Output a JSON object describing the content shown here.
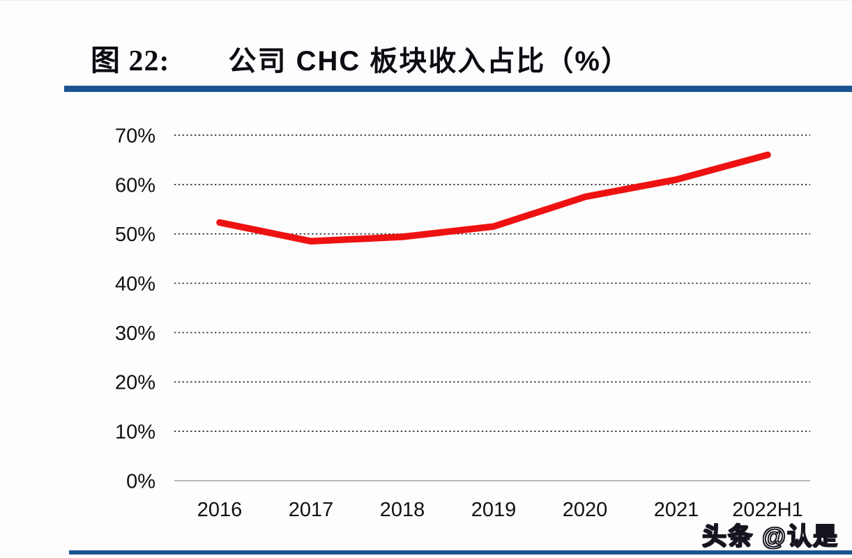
{
  "figure": {
    "label": "图 22:",
    "title": "公司 CHC 板块收入占比（%）"
  },
  "watermark": "头条 @认是",
  "colors": {
    "accent_navy": "#1b5591",
    "line_red": "#ee1111",
    "text": "#111111",
    "gridline": "#2b2b2b",
    "axis_line": "#a0a0a8"
  },
  "chart_data": {
    "type": "line",
    "title": "公司 CHC 板块收入占比（%）",
    "categories": [
      "2016",
      "2017",
      "2018",
      "2019",
      "2020",
      "2021",
      "2022H1"
    ],
    "values": [
      52.3,
      48.5,
      49.4,
      51.5,
      57.5,
      61.0,
      66.0
    ],
    "xlabel": "",
    "ylabel": "",
    "ylim": [
      0,
      70
    ],
    "yticks": [
      0,
      10,
      20,
      30,
      40,
      50,
      60,
      70
    ],
    "ytick_suffix": "%",
    "grid": "horizontal-dotted",
    "legend_position": "none",
    "line_color": "#ee1111"
  }
}
